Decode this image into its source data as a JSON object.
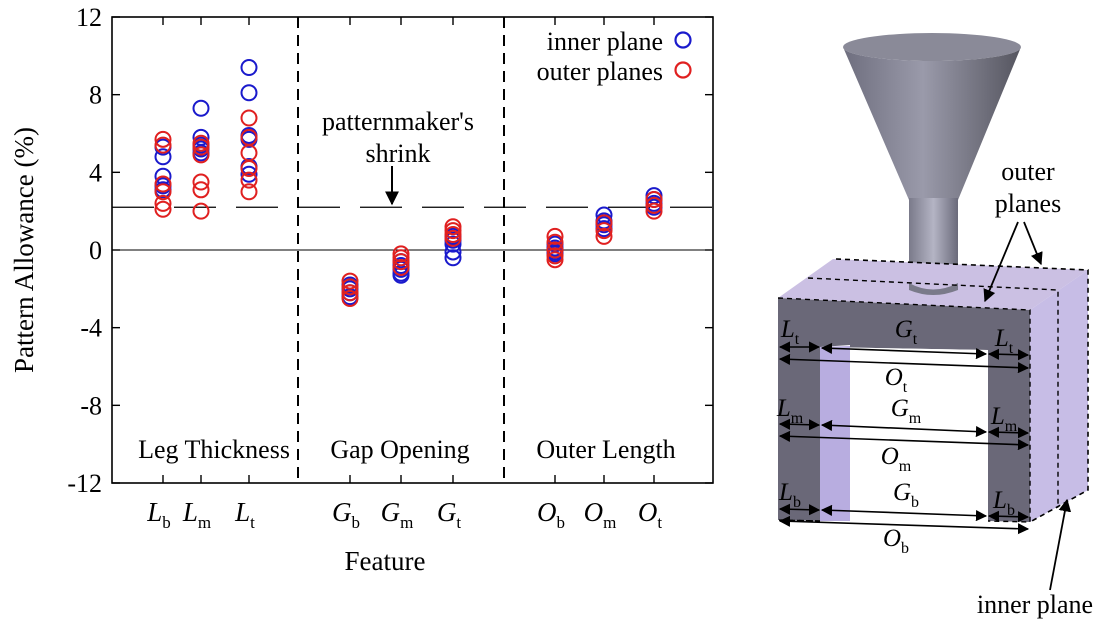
{
  "chart_data": {
    "type": "scatter",
    "title": "",
    "xlabel": "Feature",
    "ylabel": "Pattern Allowance (%)",
    "ylim": [
      -12,
      12
    ],
    "yticks": [
      12,
      8,
      4,
      0,
      -4,
      -8,
      -12
    ],
    "grid": false,
    "legend_position": "top-right",
    "categories": [
      {
        "main": "L",
        "sub": "b"
      },
      {
        "main": "L",
        "sub": "m"
      },
      {
        "main": "L",
        "sub": "t"
      },
      {
        "main": "G",
        "sub": "b"
      },
      {
        "main": "G",
        "sub": "m"
      },
      {
        "main": "G",
        "sub": "t"
      },
      {
        "main": "O",
        "sub": "b"
      },
      {
        "main": "O",
        "sub": "m"
      },
      {
        "main": "O",
        "sub": "t"
      }
    ],
    "groups": [
      {
        "label": "Leg Thickness",
        "categories": [
          0,
          1,
          2
        ]
      },
      {
        "label": "Gap Opening",
        "categories": [
          3,
          4,
          5
        ]
      },
      {
        "label": "Outer Length",
        "categories": [
          6,
          7,
          8
        ]
      }
    ],
    "series": [
      {
        "name": "inner plane",
        "color": "#1a1acc",
        "points": [
          [
            0,
            5.3
          ],
          [
            0,
            4.8
          ],
          [
            0,
            3.8
          ],
          [
            0,
            3.3
          ],
          [
            0,
            3.1
          ],
          [
            1,
            7.3
          ],
          [
            1,
            5.8
          ],
          [
            1,
            5.4
          ],
          [
            1,
            5.2
          ],
          [
            1,
            5.0
          ],
          [
            2,
            9.4
          ],
          [
            2,
            8.1
          ],
          [
            2,
            5.9
          ],
          [
            2,
            5.7
          ],
          [
            2,
            4.3
          ],
          [
            2,
            3.9
          ],
          [
            3,
            -1.8
          ],
          [
            3,
            -2.0
          ],
          [
            3,
            -2.2
          ],
          [
            3,
            -2.4
          ],
          [
            4,
            -0.6
          ],
          [
            4,
            -0.8
          ],
          [
            4,
            -1.0
          ],
          [
            4,
            -1.2
          ],
          [
            4,
            -1.3
          ],
          [
            5,
            0.7
          ],
          [
            5,
            0.5
          ],
          [
            5,
            0.3
          ],
          [
            5,
            -0.1
          ],
          [
            5,
            -0.4
          ],
          [
            6,
            0.3
          ],
          [
            6,
            0.1
          ],
          [
            6,
            -0.1
          ],
          [
            6,
            -0.2
          ],
          [
            7,
            1.8
          ],
          [
            7,
            1.5
          ],
          [
            7,
            1.3
          ],
          [
            7,
            1.1
          ],
          [
            8,
            2.8
          ],
          [
            8,
            2.6
          ],
          [
            8,
            2.4
          ],
          [
            8,
            2.2
          ]
        ]
      },
      {
        "name": "outer planes",
        "color": "#e02020",
        "points": [
          [
            0,
            5.7
          ],
          [
            0,
            5.4
          ],
          [
            0,
            3.4
          ],
          [
            0,
            3.0
          ],
          [
            0,
            2.4
          ],
          [
            0,
            2.1
          ],
          [
            1,
            5.5
          ],
          [
            1,
            5.3
          ],
          [
            1,
            4.9
          ],
          [
            1,
            3.5
          ],
          [
            1,
            3.1
          ],
          [
            1,
            2.0
          ],
          [
            2,
            6.8
          ],
          [
            2,
            5.8
          ],
          [
            2,
            5.0
          ],
          [
            2,
            4.2
          ],
          [
            2,
            3.6
          ],
          [
            2,
            3.0
          ],
          [
            3,
            -1.6
          ],
          [
            3,
            -1.9
          ],
          [
            3,
            -2.2
          ],
          [
            3,
            -2.5
          ],
          [
            4,
            -0.2
          ],
          [
            4,
            -0.4
          ],
          [
            4,
            -0.6
          ],
          [
            4,
            -0.9
          ],
          [
            5,
            1.2
          ],
          [
            5,
            1.0
          ],
          [
            5,
            0.8
          ],
          [
            5,
            0.6
          ],
          [
            6,
            0.7
          ],
          [
            6,
            0.4
          ],
          [
            6,
            0.0
          ],
          [
            6,
            -0.3
          ],
          [
            6,
            -0.5
          ],
          [
            7,
            1.4
          ],
          [
            7,
            1.0
          ],
          [
            7,
            0.7
          ],
          [
            8,
            2.6
          ],
          [
            8,
            2.3
          ],
          [
            8,
            2.0
          ]
        ]
      }
    ],
    "reference_line": {
      "value": 2.2,
      "style": "dashed"
    },
    "zero_line": {
      "value": 0,
      "style": "solid"
    },
    "annotations": [
      {
        "text_lines": [
          "patternmaker's",
          "shrink"
        ]
      }
    ]
  },
  "diagram": {
    "labels": {
      "outer_planes": [
        "outer",
        "planes"
      ],
      "inner_plane": "inner plane"
    },
    "dims": [
      {
        "main": "L",
        "sub": "t"
      },
      {
        "main": "G",
        "sub": "t"
      },
      {
        "main": "L",
        "sub": "t"
      },
      {
        "main": "O",
        "sub": "t"
      },
      {
        "main": "L",
        "sub": "m"
      },
      {
        "main": "G",
        "sub": "m"
      },
      {
        "main": "L",
        "sub": "m"
      },
      {
        "main": "O",
        "sub": "m"
      },
      {
        "main": "L",
        "sub": "b"
      },
      {
        "main": "G",
        "sub": "b"
      },
      {
        "main": "L",
        "sub": "b"
      },
      {
        "main": "O",
        "sub": "b"
      }
    ]
  }
}
